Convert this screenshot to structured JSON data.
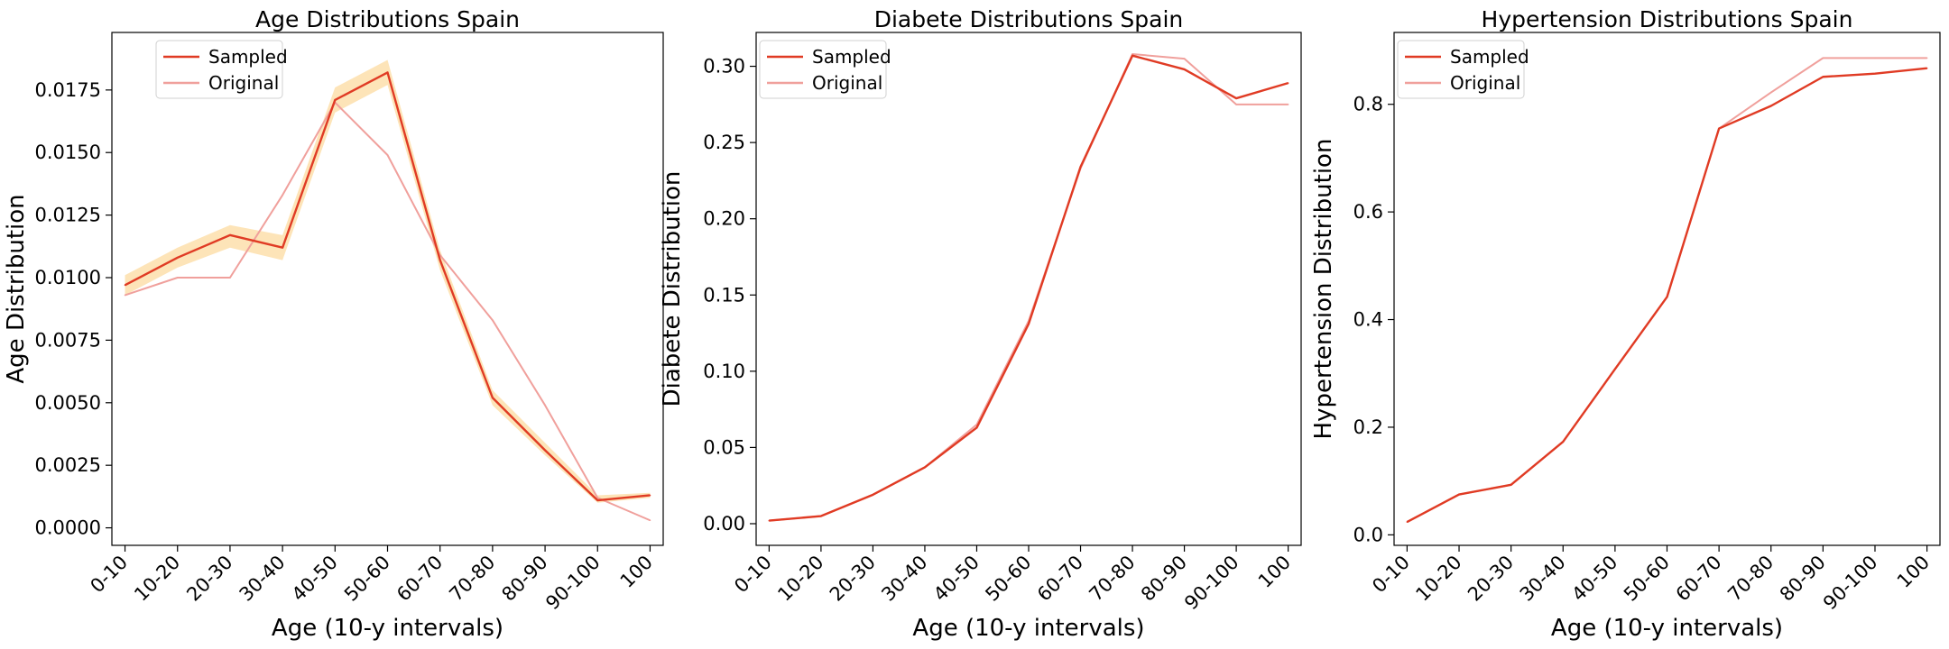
{
  "charts": [
    {
      "type": "line",
      "title": "Age Distributions Spain",
      "xlabel": "Age (10-y intervals)",
      "ylabel": "Age Distribution",
      "categories": [
        "0-10",
        "10-20",
        "20-30",
        "30-40",
        "40-50",
        "50-60",
        "60-70",
        "70-80",
        "80-90",
        "90-100",
        "100"
      ],
      "ylim": [
        -0.0007,
        0.0198
      ],
      "yticks": [
        0.0,
        0.0025,
        0.005,
        0.0075,
        0.01,
        0.0125,
        0.015,
        0.0175
      ],
      "ytick_labels": [
        "0.0000",
        "0.0025",
        "0.0050",
        "0.0075",
        "0.0100",
        "0.0125",
        "0.0150",
        "0.0175"
      ],
      "legend_position": "upper-left",
      "band_color": "#fde4b8",
      "series": [
        {
          "name": "Sampled",
          "color": "#e03b24",
          "values": [
            0.0097,
            0.0108,
            0.0117,
            0.0112,
            0.0171,
            0.0182,
            0.0107,
            0.0052,
            0.0031,
            0.0011,
            0.0013
          ],
          "band_lower": [
            0.0093,
            0.0104,
            0.0112,
            0.0107,
            0.0166,
            0.0177,
            0.0103,
            0.0049,
            0.0029,
            0.001,
            0.0012
          ],
          "band_upper": [
            0.0101,
            0.0112,
            0.0121,
            0.0117,
            0.0176,
            0.0187,
            0.0111,
            0.0055,
            0.0034,
            0.0013,
            0.0014
          ]
        },
        {
          "name": "Original",
          "color": "#f0a09c",
          "values": [
            0.0093,
            0.01,
            0.01,
            0.0133,
            0.017,
            0.0149,
            0.0109,
            0.0083,
            0.0049,
            0.0012,
            0.0003
          ]
        }
      ]
    },
    {
      "type": "line",
      "title": "Diabete Distributions Spain",
      "xlabel": "Age (10-y intervals)",
      "ylabel": "Diabete Distribution",
      "categories": [
        "0-10",
        "10-20",
        "20-30",
        "30-40",
        "40-50",
        "50-60",
        "60-70",
        "70-80",
        "80-90",
        "90-100",
        "100"
      ],
      "ylim": [
        -0.0142,
        0.3222
      ],
      "yticks": [
        0.0,
        0.05,
        0.1,
        0.15,
        0.2,
        0.25,
        0.3
      ],
      "ytick_labels": [
        "0.00",
        "0.05",
        "0.10",
        "0.15",
        "0.20",
        "0.25",
        "0.30"
      ],
      "legend_position": "upper-left",
      "series": [
        {
          "name": "Sampled",
          "color": "#e03b24",
          "values": [
            0.002,
            0.005,
            0.019,
            0.037,
            0.063,
            0.131,
            0.234,
            0.307,
            0.298,
            0.279,
            0.289
          ]
        },
        {
          "name": "Original",
          "color": "#f0a09c",
          "values": [
            0.002,
            0.005,
            0.019,
            0.037,
            0.065,
            0.133,
            0.233,
            0.308,
            0.305,
            0.275,
            0.275
          ]
        }
      ]
    },
    {
      "type": "line",
      "title": "Hypertension Distributions Spain",
      "xlabel": "Age (10-y intervals)",
      "ylabel": "Hypertension Distribution",
      "categories": [
        "0-10",
        "10-20",
        "20-30",
        "30-40",
        "40-50",
        "50-60",
        "60-70",
        "70-80",
        "80-90",
        "90-100",
        "100"
      ],
      "ylim": [
        -0.0195,
        0.9335
      ],
      "yticks": [
        0.0,
        0.2,
        0.4,
        0.6,
        0.8
      ],
      "ytick_labels": [
        "0.0",
        "0.2",
        "0.4",
        "0.6",
        "0.8"
      ],
      "legend_position": "upper-left",
      "series": [
        {
          "name": "Sampled",
          "color": "#e03b24",
          "values": [
            0.024,
            0.075,
            0.093,
            0.173,
            0.308,
            0.442,
            0.755,
            0.797,
            0.851,
            0.857,
            0.867
          ]
        },
        {
          "name": "Original",
          "color": "#f0a09c",
          "values": [
            0.024,
            0.075,
            0.093,
            0.173,
            0.308,
            0.442,
            0.755,
            0.822,
            0.886,
            0.886,
            0.886
          ]
        }
      ]
    }
  ]
}
